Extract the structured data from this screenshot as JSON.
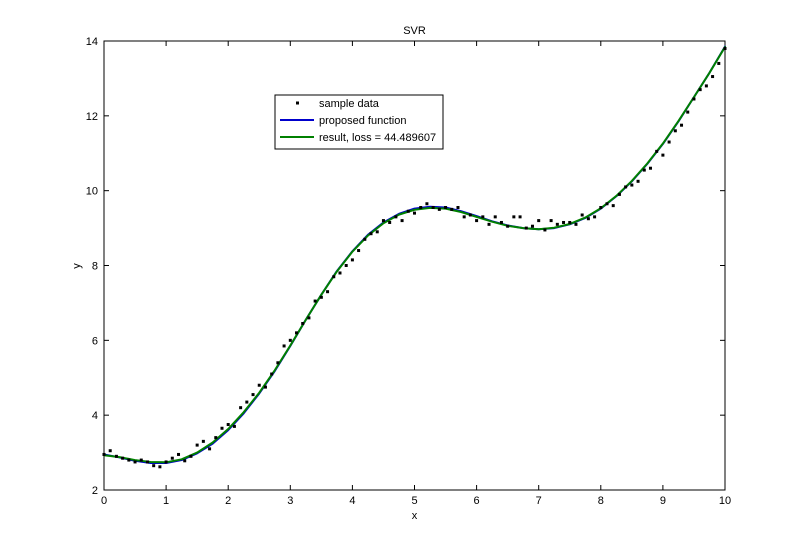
{
  "chart_data": {
    "type": "scatter",
    "title": "SVR",
    "xlabel": "x",
    "ylabel": "y",
    "xlim": [
      0,
      10
    ],
    "ylim": [
      2,
      14
    ],
    "x_ticks": [
      0,
      1,
      2,
      3,
      4,
      5,
      6,
      7,
      8,
      9,
      10
    ],
    "y_ticks": [
      2,
      4,
      6,
      8,
      10,
      12,
      14
    ],
    "grid": false,
    "legend_position": "upper-left-center",
    "series": [
      {
        "name": "sample data",
        "kind": "markers",
        "color": "#000000",
        "x": [
          0.0,
          0.1,
          0.2,
          0.3,
          0.4,
          0.5,
          0.6,
          0.7,
          0.8,
          0.9,
          1.0,
          1.1,
          1.2,
          1.3,
          1.4,
          1.5,
          1.6,
          1.7,
          1.8,
          1.9,
          2.0,
          2.1,
          2.2,
          2.3,
          2.4,
          2.5,
          2.6,
          2.7,
          2.8,
          2.9,
          3.0,
          3.1,
          3.2,
          3.3,
          3.4,
          3.5,
          3.6,
          3.7,
          3.8,
          3.9,
          4.0,
          4.1,
          4.2,
          4.3,
          4.4,
          4.5,
          4.6,
          4.7,
          4.8,
          4.9,
          5.0,
          5.1,
          5.2,
          5.3,
          5.4,
          5.5,
          5.6,
          5.7,
          5.8,
          5.9,
          6.0,
          6.1,
          6.2,
          6.3,
          6.4,
          6.5,
          6.6,
          6.7,
          6.8,
          6.9,
          7.0,
          7.1,
          7.2,
          7.3,
          7.4,
          7.5,
          7.6,
          7.7,
          7.8,
          7.9,
          8.0,
          8.1,
          8.2,
          8.3,
          8.4,
          8.5,
          8.6,
          8.7,
          8.8,
          8.9,
          9.0,
          9.1,
          9.2,
          9.3,
          9.4,
          9.5,
          9.6,
          9.7,
          9.8,
          9.9,
          10.0
        ],
        "y": [
          2.95,
          3.05,
          2.9,
          2.85,
          2.8,
          2.75,
          2.8,
          2.75,
          2.65,
          2.62,
          2.75,
          2.85,
          2.95,
          2.78,
          2.9,
          3.2,
          3.3,
          3.1,
          3.4,
          3.65,
          3.75,
          3.7,
          4.2,
          4.35,
          4.55,
          4.8,
          4.75,
          5.1,
          5.4,
          5.85,
          6.0,
          6.2,
          6.45,
          6.6,
          7.05,
          7.15,
          7.3,
          7.7,
          7.8,
          8.0,
          8.15,
          8.4,
          8.7,
          8.85,
          8.9,
          9.2,
          9.15,
          9.3,
          9.2,
          9.45,
          9.4,
          9.55,
          9.65,
          9.55,
          9.5,
          9.55,
          9.5,
          9.55,
          9.3,
          9.35,
          9.2,
          9.3,
          9.1,
          9.3,
          9.15,
          9.05,
          9.3,
          9.3,
          9.0,
          9.05,
          9.2,
          8.95,
          9.2,
          9.1,
          9.15,
          9.15,
          9.1,
          9.35,
          9.25,
          9.3,
          9.55,
          9.65,
          9.6,
          9.9,
          10.1,
          10.15,
          10.25,
          10.55,
          10.6,
          11.05,
          10.95,
          11.3,
          11.6,
          11.75,
          12.1,
          12.45,
          12.7,
          12.8,
          13.05,
          13.4,
          13.8
        ]
      },
      {
        "name": "proposed function",
        "kind": "line",
        "color": "#0000cc",
        "x": [
          0.0,
          0.25,
          0.5,
          0.75,
          1.0,
          1.25,
          1.5,
          1.75,
          2.0,
          2.25,
          2.5,
          2.75,
          3.0,
          3.25,
          3.5,
          3.75,
          4.0,
          4.25,
          4.5,
          4.75,
          5.0,
          5.25,
          5.5,
          5.75,
          6.0,
          6.25,
          6.5,
          6.75,
          7.0,
          7.25,
          7.5,
          7.75,
          8.0,
          8.25,
          8.5,
          8.75,
          9.0,
          9.25,
          9.5,
          9.75,
          10.0
        ],
        "y": [
          2.95,
          2.87,
          2.78,
          2.72,
          2.72,
          2.8,
          2.98,
          3.24,
          3.6,
          4.05,
          4.58,
          5.18,
          5.85,
          6.55,
          7.22,
          7.85,
          8.38,
          8.82,
          9.15,
          9.38,
          9.52,
          9.57,
          9.55,
          9.45,
          9.32,
          9.18,
          9.07,
          9.0,
          8.97,
          9.0,
          9.1,
          9.27,
          9.52,
          9.85,
          10.25,
          10.72,
          11.25,
          11.85,
          12.5,
          13.15,
          13.85
        ]
      },
      {
        "name": "result, loss = 44.489607",
        "kind": "line",
        "color": "#008000",
        "x": [
          0.0,
          0.25,
          0.5,
          0.75,
          1.0,
          1.25,
          1.5,
          1.75,
          2.0,
          2.25,
          2.5,
          2.75,
          3.0,
          3.25,
          3.5,
          3.75,
          4.0,
          4.25,
          4.5,
          4.75,
          5.0,
          5.25,
          5.5,
          5.75,
          6.0,
          6.25,
          6.5,
          6.75,
          7.0,
          7.25,
          7.5,
          7.75,
          8.0,
          8.25,
          8.5,
          8.75,
          9.0,
          9.25,
          9.5,
          9.75,
          10.0
        ],
        "y": [
          2.93,
          2.88,
          2.8,
          2.75,
          2.74,
          2.82,
          3.0,
          3.27,
          3.63,
          4.08,
          4.6,
          5.2,
          5.86,
          6.55,
          7.22,
          7.84,
          8.37,
          8.8,
          9.13,
          9.36,
          9.49,
          9.54,
          9.52,
          9.43,
          9.3,
          9.17,
          9.06,
          9.0,
          8.97,
          9.01,
          9.11,
          9.28,
          9.53,
          9.86,
          10.26,
          10.73,
          11.26,
          11.86,
          12.5,
          13.15,
          13.84
        ]
      }
    ]
  }
}
